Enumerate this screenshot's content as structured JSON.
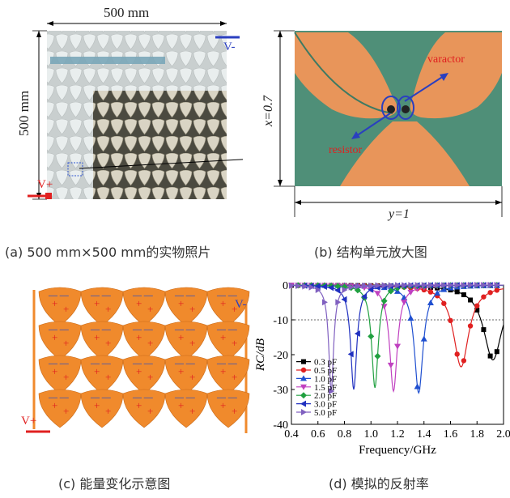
{
  "panel_a": {
    "width_label": "500 mm",
    "height_label": "500 mm",
    "v_minus": "V-",
    "v_plus": "V+"
  },
  "panel_b": {
    "x_label": "x=0.7",
    "y_label": "y=1",
    "varactor": "varactor",
    "resistor": "resistor"
  },
  "panel_c": {
    "v_minus": "V-",
    "v_plus": "V+"
  },
  "captions": {
    "a": "(a) 500 mm×500 mm的实物照片",
    "b": "(b) 结构单元放大图",
    "c": "(c) 能量变化示意图",
    "d": "(d) 模拟的反射率"
  },
  "colors": {
    "board_green": "#4f8f78",
    "copper": "#e8955a",
    "orange": "#f08a2c",
    "plus_red": "#e02020",
    "minus_blue": "#3050c0"
  },
  "chart_data": {
    "type": "line",
    "xlabel": "Frequency/GHz",
    "ylabel": "RC/dB",
    "xlim": [
      0.4,
      2.0
    ],
    "ylim": [
      -40,
      0
    ],
    "xticks": [
      "0.4",
      "0.6",
      "0.8",
      "1.0",
      "1.2",
      "1.4",
      "1.6",
      "1.8",
      "2.0"
    ],
    "yticks": [
      "0",
      "-10",
      "-20",
      "-30",
      "-40"
    ],
    "reference_line_db": -10,
    "series": [
      {
        "name": "0.3 pF",
        "color": "#000000",
        "marker": "square",
        "f0": 1.92,
        "depth": -21.5,
        "width": 0.085
      },
      {
        "name": "0.5 pF",
        "color": "#e02020",
        "marker": "circle",
        "f0": 1.68,
        "depth": -23.5,
        "width": 0.07
      },
      {
        "name": "1.0 pF",
        "color": "#1f4fd0",
        "marker": "triangle",
        "f0": 1.36,
        "depth": -31,
        "width": 0.04
      },
      {
        "name": "1.5 pF",
        "color": "#c040c0",
        "marker": "triangle-down",
        "f0": 1.17,
        "depth": -30.5,
        "width": 0.035
      },
      {
        "name": "2.0 pF",
        "color": "#20a040",
        "marker": "diamond",
        "f0": 1.03,
        "depth": -29.5,
        "width": 0.03
      },
      {
        "name": "3.0 pF",
        "color": "#2030c0",
        "marker": "triangle-left",
        "f0": 0.87,
        "depth": -30,
        "width": 0.028
      },
      {
        "name": "5.0 pF",
        "color": "#8060c0",
        "marker": "triangle-right",
        "f0": 0.7,
        "depth": -30.5,
        "width": 0.022
      }
    ]
  }
}
